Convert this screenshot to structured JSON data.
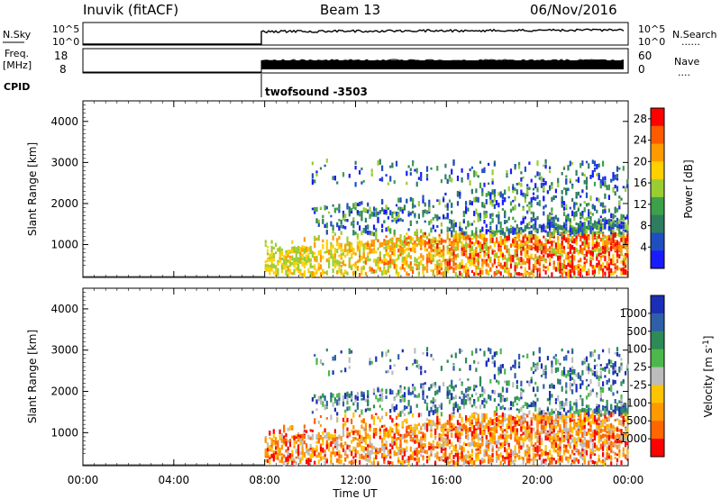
{
  "header": {
    "station": "Inuvik (fitACF)",
    "beam": "Beam 13",
    "date": "06/Nov/2016"
  },
  "summary_panels": {
    "nsky": {
      "left_label": "N.Sky",
      "left_ticks": [
        "10^5",
        "10^0"
      ],
      "right_label": "N.Search",
      "right_ticks": [
        "10^5",
        "10^0"
      ],
      "right_dots": "......"
    },
    "freq": {
      "left_label_1": "Freq.",
      "left_label_2": "[MHz]",
      "left_ticks": [
        "18",
        "8"
      ],
      "right_label": "Nave",
      "right_ticks": [
        "60",
        "0"
      ],
      "right_dots": "...."
    },
    "cpid": {
      "label": "CPID",
      "program": "twofsound -3503"
    }
  },
  "time_axis": {
    "label": "Time UT",
    "ticks": [
      "00:00",
      "04:00",
      "08:00",
      "12:00",
      "16:00",
      "20:00",
      "00:00"
    ]
  },
  "colors": {
    "power_scale": [
      "#1a1aff",
      "#1f4fbf",
      "#2e7d5e",
      "#3da04a",
      "#9acd32",
      "#ffd000",
      "#ff9a00",
      "#ff5a00",
      "#ff0000"
    ],
    "velocity_scale": [
      "#1a2fb5",
      "#2e5fa8",
      "#2e8b57",
      "#4cb84c",
      "#bcbcbc",
      "#ffc400",
      "#ff9900",
      "#ff6600",
      "#ff0000"
    ]
  },
  "chart_data": [
    {
      "type": "heatmap",
      "name": "power",
      "ylabel": "Slant Range [km]",
      "xlabel": "",
      "yticks": [
        "1000",
        "2000",
        "3000",
        "4000"
      ],
      "ylim": [
        200,
        4500
      ],
      "xlim_hours": [
        0,
        24
      ],
      "colorbar_label": "Power [dB]",
      "colorbar_ticks": [
        "4",
        "8",
        "12",
        "16",
        "20",
        "24",
        "28"
      ],
      "colorbar_range": [
        0,
        30
      ],
      "data_start_hour": 8
    },
    {
      "type": "heatmap",
      "name": "velocity",
      "ylabel": "Slant Range [km]",
      "xlabel": "Time UT",
      "yticks": [
        "1000",
        "2000",
        "3000",
        "4000"
      ],
      "ylim": [
        200,
        4500
      ],
      "xlim_hours": [
        0,
        24
      ],
      "colorbar_label": "Velocity [m s",
      "colorbar_label_sup": "-1",
      "colorbar_label_end": "]",
      "colorbar_ticks": [
        "1000",
        "500",
        "100",
        "25",
        "-25",
        "-100",
        "-500",
        "-1000"
      ],
      "data_start_hour": 8
    }
  ]
}
